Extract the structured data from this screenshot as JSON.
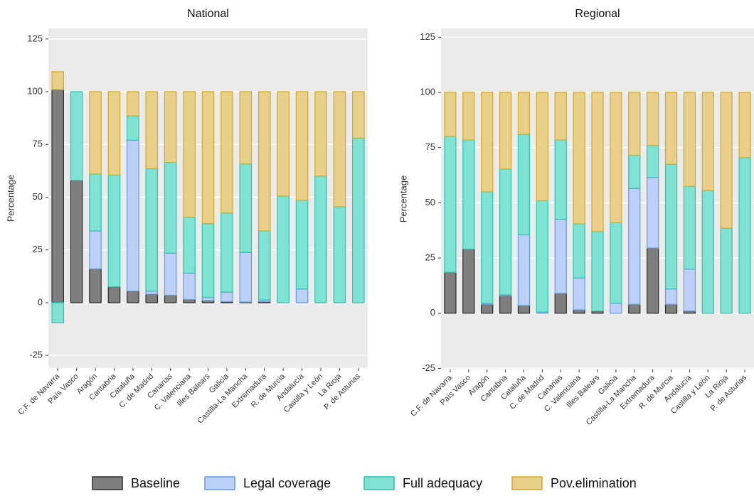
{
  "chart_data": [
    {
      "type": "bar",
      "stacked": true,
      "title": "National",
      "y_label": "Percentage",
      "categories": [
        "C.F. de Navarra",
        "País Vasco",
        "Aragón",
        "Cantabria",
        "Cataluña",
        "C. de Madrid",
        "Canarias",
        "C. Valenciana",
        "Illes Balears",
        "Galicia",
        "Castilla-La Mancha",
        "Extremadura",
        "R. de Murcia",
        "Andalucía",
        "Castilla y León",
        "La Rioja",
        "P. de Asturias"
      ],
      "series": [
        {
          "name": "Baseline",
          "color": "#7f7f7f",
          "edge_color": "#2b2b2b",
          "values": [
            101,
            58,
            16,
            7.5,
            5.5,
            4,
            3.5,
            1.5,
            1,
            0.5,
            0.3,
            0.5,
            0,
            0,
            0,
            0,
            0
          ]
        },
        {
          "name": "Legal coverage",
          "color": "#bcd0fa",
          "edge_color": "#5e9cec",
          "values": [
            0,
            0,
            18,
            0,
            71.5,
            1.5,
            20,
            12.5,
            1.5,
            4.5,
            23.5,
            0.8,
            0,
            6.5,
            0,
            0,
            0
          ]
        },
        {
          "name": "Full adequacy",
          "color": "#80e2d3",
          "edge_color": "#2dc3ae",
          "values": [
            -9.5,
            42,
            27,
            53,
            11.5,
            58,
            43,
            26.5,
            35,
            37.5,
            42,
            32.7,
            50.5,
            42,
            60,
            45.5,
            78
          ]
        },
        {
          "name": "Pov.elimination",
          "color": "#e9d08a",
          "edge_color": "#d3a829",
          "values": [
            8.5,
            0,
            39,
            39.5,
            11.5,
            36.5,
            33.5,
            59.5,
            62.5,
            57.5,
            34.2,
            66,
            49.5,
            51.5,
            40,
            54.5,
            22
          ]
        }
      ],
      "ylim": [
        -31,
        130
      ],
      "yticks": [
        -25,
        0,
        25,
        50,
        75,
        100,
        125
      ],
      "grid": true,
      "legend": "bottom"
    },
    {
      "type": "bar",
      "stacked": true,
      "title": "Regional",
      "y_label": "Percentage",
      "categories": [
        "C.F. de Navarra",
        "País Vasco",
        "Aragón",
        "Cantabria",
        "Cataluña",
        "C. de Madrid",
        "Canarias",
        "C. Valenciana",
        "Illes Balears",
        "Galicia",
        "Castilla-La Mancha",
        "Extremadura",
        "R. de Murcia",
        "Andalucía",
        "Castilla y León",
        "La Rioja",
        "P. de Asturias"
      ],
      "series": [
        {
          "values": [
            18.5,
            29,
            4,
            8,
            3.5,
            0,
            9,
            1.5,
            1,
            0,
            4,
            29.5,
            4,
            1,
            0,
            0,
            0
          ]
        },
        {
          "values": [
            0,
            0,
            0.5,
            0.3,
            32,
            0.5,
            33.5,
            14.5,
            0,
            4.5,
            52.5,
            32,
            7,
            19,
            0,
            0,
            0
          ]
        },
        {
          "values": [
            61.5,
            49.5,
            50.5,
            57,
            45.5,
            50.5,
            36,
            24.5,
            36,
            36.5,
            15,
            14.5,
            56.5,
            37.5,
            55.5,
            38.5,
            70.5
          ]
        },
        {
          "values": [
            20,
            21.5,
            45,
            34.7,
            19,
            49,
            21.5,
            59.5,
            63,
            59,
            28.5,
            24,
            32.5,
            42.5,
            44.5,
            61.5,
            29.5
          ]
        }
      ],
      "ylim": [
        -25.5,
        129
      ],
      "yticks": [
        -25,
        0,
        25,
        50,
        75,
        100,
        125
      ],
      "grid": true
    }
  ]
}
